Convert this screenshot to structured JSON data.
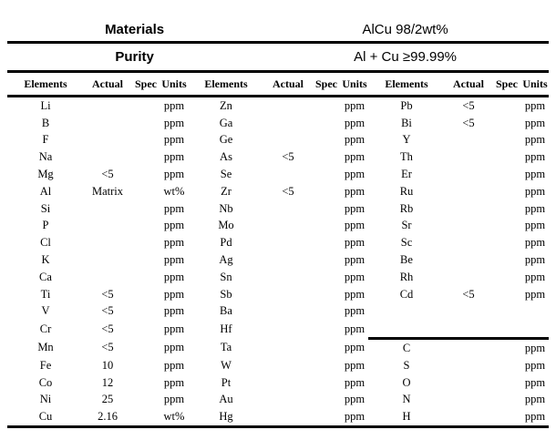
{
  "page": {
    "background": "#ffffff",
    "text_color": "#000000",
    "rule_color": "#000000"
  },
  "header": {
    "materials": {
      "label": "Materials",
      "value": "AlCu 98/2wt%"
    },
    "purity": {
      "label": "Purity",
      "value": "Al + Cu ≥99.99%"
    }
  },
  "table": {
    "group_count": 3,
    "group_headers": [
      "Elements",
      "Actual",
      "Spec",
      "Units"
    ],
    "cell_names": [
      "element",
      "actual",
      "spec",
      "units"
    ],
    "group3_divider_above_row": 15,
    "rows": [
      {
        "cells": [
          [
            "Li",
            "",
            "",
            "ppm"
          ],
          [
            "Zn",
            "",
            "",
            "ppm"
          ],
          [
            "Pb",
            "<5",
            "",
            "ppm"
          ]
        ]
      },
      {
        "cells": [
          [
            "B",
            "",
            "",
            "ppm"
          ],
          [
            "Ga",
            "",
            "",
            "ppm"
          ],
          [
            "Bi",
            "<5",
            "",
            "ppm"
          ]
        ]
      },
      {
        "cells": [
          [
            "F",
            "",
            "",
            "ppm"
          ],
          [
            "Ge",
            "",
            "",
            "ppm"
          ],
          [
            "Y",
            "",
            "",
            "ppm"
          ]
        ]
      },
      {
        "cells": [
          [
            "Na",
            "",
            "",
            "ppm"
          ],
          [
            "As",
            "<5",
            "",
            "ppm"
          ],
          [
            "Th",
            "",
            "",
            "ppm"
          ]
        ]
      },
      {
        "cells": [
          [
            "Mg",
            "<5",
            "",
            "ppm"
          ],
          [
            "Se",
            "",
            "",
            "ppm"
          ],
          [
            "Er",
            "",
            "",
            "ppm"
          ]
        ]
      },
      {
        "cells": [
          [
            "Al",
            "Matrix",
            "",
            "wt%"
          ],
          [
            "Zr",
            "<5",
            "",
            "ppm"
          ],
          [
            "Ru",
            "",
            "",
            "ppm"
          ]
        ]
      },
      {
        "cells": [
          [
            "Si",
            "",
            "",
            "ppm"
          ],
          [
            "Nb",
            "",
            "",
            "ppm"
          ],
          [
            "Rb",
            "",
            "",
            "ppm"
          ]
        ]
      },
      {
        "cells": [
          [
            "P",
            "",
            "",
            "ppm"
          ],
          [
            "Mo",
            "",
            "",
            "ppm"
          ],
          [
            "Sr",
            "",
            "",
            "ppm"
          ]
        ]
      },
      {
        "cells": [
          [
            "Cl",
            "",
            "",
            "ppm"
          ],
          [
            "Pd",
            "",
            "",
            "ppm"
          ],
          [
            "Sc",
            "",
            "",
            "ppm"
          ]
        ]
      },
      {
        "cells": [
          [
            "K",
            "",
            "",
            "ppm"
          ],
          [
            "Ag",
            "",
            "",
            "ppm"
          ],
          [
            "Be",
            "",
            "",
            "ppm"
          ]
        ]
      },
      {
        "cells": [
          [
            "Ca",
            "",
            "",
            "ppm"
          ],
          [
            "Sn",
            "",
            "",
            "ppm"
          ],
          [
            "Rh",
            "",
            "",
            "ppm"
          ]
        ]
      },
      {
        "cells": [
          [
            "Ti",
            "<5",
            "",
            "ppm"
          ],
          [
            "Sb",
            "",
            "",
            "ppm"
          ],
          [
            "Cd",
            "<5",
            "",
            "ppm"
          ]
        ]
      },
      {
        "cells": [
          [
            "V",
            "<5",
            "",
            "ppm"
          ],
          [
            "Ba",
            "",
            "",
            "ppm"
          ],
          [
            "",
            "",
            "",
            ""
          ]
        ]
      },
      {
        "cells": [
          [
            "Cr",
            "<5",
            "",
            "ppm"
          ],
          [
            "Hf",
            "",
            "",
            "ppm"
          ],
          [
            "",
            "",
            "",
            ""
          ]
        ]
      },
      {
        "cells": [
          [
            "Mn",
            "<5",
            "",
            "ppm"
          ],
          [
            "Ta",
            "",
            "",
            "ppm"
          ],
          [
            "C",
            "",
            "",
            "ppm"
          ]
        ]
      },
      {
        "cells": [
          [
            "Fe",
            "10",
            "",
            "ppm"
          ],
          [
            "W",
            "",
            "",
            "ppm"
          ],
          [
            "S",
            "",
            "",
            "ppm"
          ]
        ]
      },
      {
        "cells": [
          [
            "Co",
            "12",
            "",
            "ppm"
          ],
          [
            "Pt",
            "",
            "",
            "ppm"
          ],
          [
            "O",
            "",
            "",
            "ppm"
          ]
        ]
      },
      {
        "cells": [
          [
            "Ni",
            "25",
            "",
            "ppm"
          ],
          [
            "Au",
            "",
            "",
            "ppm"
          ],
          [
            "N",
            "",
            "",
            "ppm"
          ]
        ]
      },
      {
        "cells": [
          [
            "Cu",
            "2.16",
            "",
            "wt%"
          ],
          [
            "Hg",
            "",
            "",
            "ppm"
          ],
          [
            "H",
            "",
            "",
            "ppm"
          ]
        ]
      }
    ]
  }
}
